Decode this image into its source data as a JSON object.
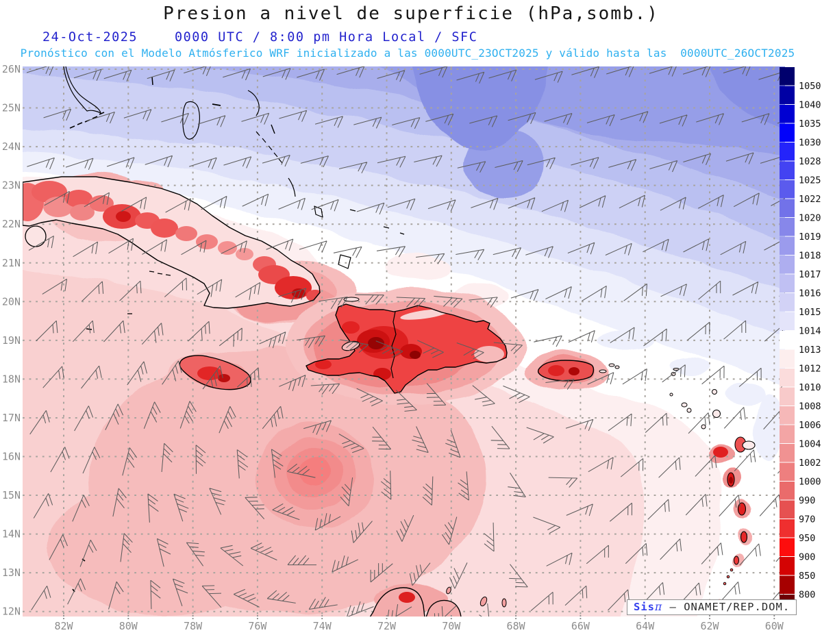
{
  "title": "Presion a nivel de superficie (hPa,somb.)",
  "header": {
    "date": "24-Oct-2025",
    "time": "0000 UTC / 8:00 pm Hora Local / SFC",
    "forecast": "Pronóstico con el Modelo Atmósferico WRF inicializado a las 0000UTC_23OCT2025 y válido hasta las  0000UTC_26OCT2025"
  },
  "credit": {
    "brand": "Sis",
    "brand_symbol": "π",
    "separator": " – ",
    "source": "ONAMET/REP.DOM."
  },
  "axes": {
    "lat": [
      "26N",
      "25N",
      "24N",
      "23N",
      "22N",
      "21N",
      "20N",
      "19N",
      "18N",
      "17N",
      "16N",
      "15N",
      "14N",
      "13N",
      "12N"
    ],
    "lon": [
      "82W",
      "80W",
      "78W",
      "76W",
      "74W",
      "72W",
      "70W",
      "68W",
      "66W",
      "64W",
      "62W",
      "60W"
    ]
  },
  "colorbar": {
    "labels": [
      "1050",
      "1040",
      "1035",
      "1030",
      "1028",
      "1025",
      "1022",
      "1020",
      "1019",
      "1018",
      "1017",
      "1016",
      "1015",
      "1014",
      "1013",
      "1012",
      "1010",
      "1008",
      "1006",
      "1004",
      "1002",
      "1000",
      "990",
      "970",
      "950",
      "900",
      "850",
      "800"
    ],
    "colors": [
      "#00006d",
      "#0000a4",
      "#0000d2",
      "#0202fa",
      "#2424fa",
      "#4343f2",
      "#5b5bed",
      "#7272e9",
      "#8787ea",
      "#9b9bed",
      "#aeaef0",
      "#c0c0f3",
      "#d2d2f6",
      "#e4e4fa",
      "#ffffff",
      "#fdeeee",
      "#fbdcdc",
      "#f8caca",
      "#f6b8b8",
      "#f3a5a5",
      "#f09292",
      "#ee7f7f",
      "#ea6b6b",
      "#e65151",
      "#ef2f2f",
      "#fd0d0d",
      "#d40303",
      "#a60000",
      "#6e0005"
    ]
  },
  "palette": {
    "blues": [
      "#eef0fc",
      "#dfe2f9",
      "#cdd1f5",
      "#bac0f1",
      "#a8aeec",
      "#969ee8",
      "#8790e4"
    ],
    "pinks": [
      "#fdeff0",
      "#fbdcdd",
      "#f9d0d0",
      "#f6bcbc",
      "#f4abab",
      "#f39a9a",
      "#f28b8b",
      "#f57e7e"
    ],
    "land_outline": "#000000",
    "barb": "#5d5d5d",
    "grid": "#a8a49e",
    "axis_label": "#8c8c8c",
    "colorbar_label": "#101010",
    "header_blue": "#2323cd",
    "header_cyan": "#2fb0ef",
    "title_color": "#161616"
  }
}
